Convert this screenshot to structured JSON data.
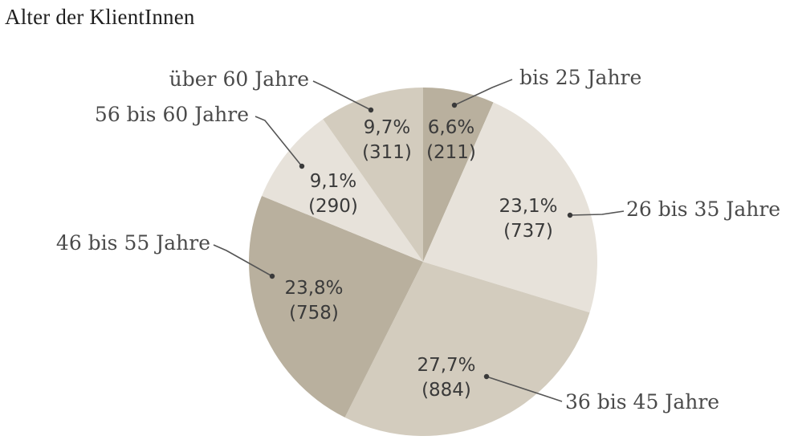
{
  "chart_data": {
    "type": "pie",
    "title": "Alter der KlientInnen",
    "categories": [
      "bis 25 Jahre",
      "26 bis 35 Jahre",
      "36 bis 45 Jahre",
      "46 bis 55 Jahre",
      "56 bis 60 Jahre",
      "über 60 Jahre"
    ],
    "values": [
      211,
      737,
      884,
      758,
      290,
      311
    ],
    "percent_labels": [
      "6,6%",
      "23,1%",
      "27,7%",
      "23,8%",
      "9,1%",
      "9,7%"
    ],
    "count_labels": [
      "(211)",
      "(737)",
      "(884)",
      "(758)",
      "(290)",
      "(311)"
    ],
    "percentages": [
      6.6,
      23.1,
      27.7,
      23.8,
      9.1,
      9.7
    ],
    "colors": [
      "#b9b09e",
      "#e7e2da",
      "#d3ccbe",
      "#b9b09e",
      "#e7e2da",
      "#d3ccbe"
    ],
    "label_text_color": "#3a3a3a",
    "leader_line_color": "#555555"
  }
}
